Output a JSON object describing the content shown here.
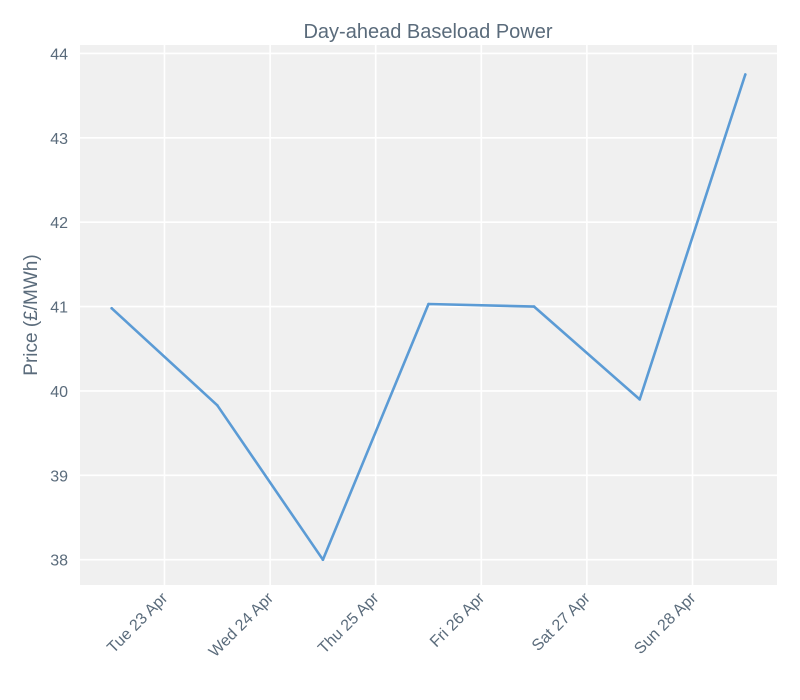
{
  "chart_data": {
    "type": "line",
    "title": "Day-ahead Baseload Power",
    "xlabel": "",
    "ylabel": "Price (£/MWh)",
    "x": [
      "2024-04-22 12:00",
      "2024-04-23 12:00",
      "2024-04-24 12:00",
      "2024-04-25 12:00",
      "2024-04-26 12:00",
      "2024-04-27 12:00",
      "2024-04-28 12:00"
    ],
    "series": [
      {
        "values": [
          40.98,
          39.83,
          38.0,
          41.03,
          41.0,
          39.9,
          43.75
        ],
        "color": "#5b9bd5"
      }
    ],
    "x_ticks": [
      {
        "date": "2024-04-23",
        "label": "Tue 23 Apr"
      },
      {
        "date": "2024-04-24",
        "label": "Wed 24 Apr"
      },
      {
        "date": "2024-04-25",
        "label": "Thu 25 Apr"
      },
      {
        "date": "2024-04-26",
        "label": "Fri 26 Apr"
      },
      {
        "date": "2024-04-27",
        "label": "Sat 27 Apr"
      },
      {
        "date": "2024-04-28",
        "label": "Sun 28 Apr"
      }
    ],
    "y_ticks": [
      38,
      39,
      40,
      41,
      42,
      43,
      44
    ],
    "ylim": [
      37.7,
      44.1
    ],
    "xlim": [
      "2024-04-22 04:48",
      "2024-04-28 19:12"
    ],
    "grid": true,
    "legend": "none",
    "background": "#f0f0f0"
  }
}
